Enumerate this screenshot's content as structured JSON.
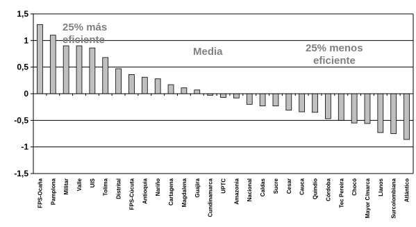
{
  "chart_data": {
    "type": "bar",
    "title": "",
    "xlabel": "",
    "ylabel": "",
    "ylim": [
      -1.5,
      1.5
    ],
    "yticks": [
      "1,5",
      "1",
      "0,5",
      "0",
      "-0,5",
      "-1",
      "-1,5"
    ],
    "ytick_values": [
      1.5,
      1,
      0.5,
      0,
      -0.5,
      -1,
      -1.5
    ],
    "grid": true,
    "bar_color": "#bfbfbf",
    "annotation_color": "#808080",
    "categories": [
      "FPS-Ocaña",
      "Pamplona",
      "Militar",
      "Valle",
      "UIS",
      "Tolima",
      "Distrital",
      "FPS-Cúcuta",
      "Antioquia",
      "Nariño",
      "Cartagena",
      "Magdalena",
      "Guajira",
      "Cundinamarca",
      "UPTC",
      "Amazonia",
      "Nacional",
      "Caldas",
      "Sucre",
      "Cesar",
      "Cauca",
      "Quindío",
      "Córdoba",
      "Tec Pereira",
      "Chocó",
      "Mayor C/marca",
      "Llanos",
      "Surcolombiana",
      "Atlántico"
    ],
    "values": [
      1.3,
      1.1,
      0.9,
      0.9,
      0.86,
      0.68,
      0.47,
      0.36,
      0.31,
      0.28,
      0.17,
      0.11,
      0.07,
      -0.03,
      -0.07,
      -0.08,
      -0.2,
      -0.23,
      -0.23,
      -0.31,
      -0.34,
      -0.35,
      -0.47,
      -0.5,
      -0.55,
      -0.56,
      -0.73,
      -0.75,
      -0.86
    ],
    "annotations": [
      "25% más eficiente",
      "Media",
      "25% menos eficiente"
    ]
  }
}
